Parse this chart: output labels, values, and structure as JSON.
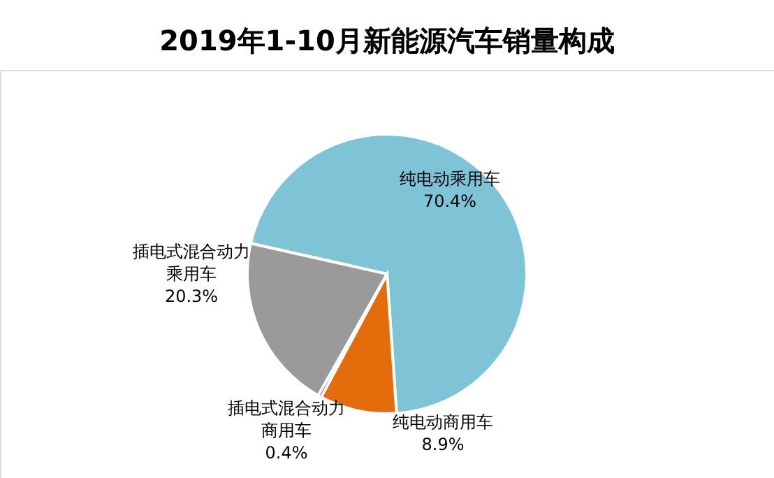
{
  "chart_data": {
    "type": "pie",
    "title": "2019年1-10月新能源汽车销量构成",
    "categories": [
      "纯电动乘用车",
      "纯电动商用车",
      "插电式混合动力商用车",
      "插电式混合动力乘用车"
    ],
    "values": [
      70.4,
      8.9,
      0.4,
      20.3
    ],
    "colors": [
      "#7fc4d6",
      "#e46c0a",
      "#c00000",
      "#9a9a9a"
    ],
    "value_labels": [
      "70.4%",
      "8.9%",
      "0.4%",
      "20.3%"
    ],
    "legend": false
  }
}
